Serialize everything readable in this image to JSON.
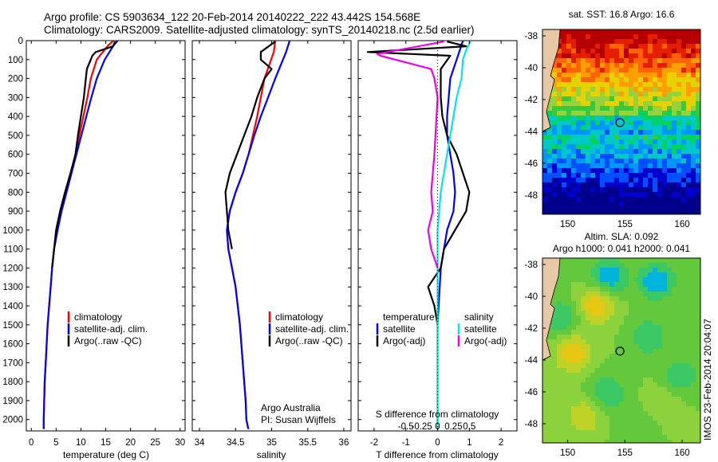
{
  "header": {
    "line1": "Argo profile: CS 5903634_122 20-Feb-2014 20140222_222 43.442S 154.568E",
    "line2": "Climatology: CARS2009. Satellite-adjusted climatology: synTS_20140218.nc (2.5d earlier)"
  },
  "colors": {
    "climatology": "#ff0000",
    "satellite": "#0000ff",
    "argo": "#000000",
    "salinity_satellite": "#00e5ee",
    "salinity_argo": "#ee00ee"
  },
  "chart_data": [
    {
      "type": "line",
      "xlabel": "temperature (deg C)",
      "xlim": [
        -1,
        31
      ],
      "xticks": [
        0,
        5,
        10,
        15,
        20,
        25,
        30
      ],
      "ylim": [
        2060,
        0
      ],
      "yticks": [
        0,
        100,
        200,
        300,
        400,
        500,
        600,
        700,
        800,
        900,
        1000,
        1100,
        1200,
        1300,
        1400,
        1500,
        1600,
        1700,
        1800,
        1900,
        2000
      ],
      "legend": [
        "climatology",
        "satellite-adj. clim.",
        "Argo(..raw -QC)"
      ],
      "series": [
        {
          "name": "climatology",
          "color": "#ff0000",
          "x": [
            16.6,
            15.5,
            13.2,
            12.0,
            11.3,
            10.5,
            9.7,
            8.9,
            8.0,
            7.0,
            6.0,
            5.2,
            4.6,
            4.2,
            3.9,
            3.6,
            3.3,
            3.1,
            2.9,
            2.7,
            2.6,
            2.5,
            2.5
          ],
          "y": [
            0,
            25,
            100,
            200,
            300,
            400,
            500,
            600,
            700,
            800,
            900,
            1000,
            1100,
            1200,
            1300,
            1400,
            1500,
            1600,
            1700,
            1800,
            1900,
            2000,
            2050
          ]
        },
        {
          "name": "satellite-adj. clim.",
          "color": "#0000ff",
          "x": [
            17.4,
            16.6,
            14.8,
            13.2,
            12.1,
            11.1,
            10.1,
            9.1,
            8.1,
            7.1,
            6.1,
            5.3,
            4.6,
            4.2,
            3.9,
            3.6,
            3.3,
            3.1,
            2.9,
            2.7,
            2.6,
            2.5,
            2.5
          ],
          "y": [
            0,
            25,
            100,
            200,
            300,
            400,
            500,
            600,
            700,
            800,
            900,
            1000,
            1100,
            1200,
            1300,
            1400,
            1500,
            1600,
            1700,
            1800,
            1900,
            2000,
            2050
          ]
        },
        {
          "name": "Argo(..raw -QC)",
          "color": "#000000",
          "x": [
            16.9,
            16.5,
            13.0,
            12.3,
            12.0,
            11.2,
            11.0,
            10.6,
            10.0,
            9.4,
            8.9,
            7.9,
            6.8,
            5.8,
            5.0,
            4.6,
            4.2
          ],
          "y": [
            5,
            30,
            60,
            80,
            100,
            150,
            200,
            300,
            400,
            500,
            600,
            700,
            800,
            900,
            1000,
            1100,
            1200
          ]
        }
      ]
    },
    {
      "type": "line",
      "xlabel": "salinity",
      "xlim": [
        33.9,
        36.1
      ],
      "xticks": [
        34,
        34.5,
        35,
        35.5,
        36
      ],
      "ylim": [
        2060,
        0
      ],
      "legend": [
        "climatology",
        "satellite-adj. clim.",
        "Argo(..raw -QC)"
      ],
      "annotation": [
        "Argo Australia",
        "PI: Susan Wijffels"
      ],
      "series": [
        {
          "name": "climatology",
          "color": "#ff0000",
          "x": [
            35.05,
            35.03,
            34.9,
            34.85,
            34.8,
            34.74,
            34.68,
            34.6,
            34.5,
            34.42,
            34.38,
            34.4,
            34.45,
            34.5,
            34.53,
            34.56,
            34.58,
            34.6,
            34.62,
            34.64,
            34.65,
            34.67,
            34.68
          ],
          "y": [
            0,
            60,
            200,
            300,
            400,
            500,
            600,
            700,
            800,
            900,
            1000,
            1100,
            1200,
            1300,
            1400,
            1500,
            1600,
            1700,
            1800,
            1900,
            2000,
            2040,
            2050
          ]
        },
        {
          "name": "satellite-adj. clim.",
          "color": "#0000ff",
          "x": [
            35.25,
            35.2,
            35.05,
            34.95,
            34.85,
            34.76,
            34.68,
            34.6,
            34.5,
            34.42,
            34.38,
            34.4,
            34.45,
            34.5,
            34.53,
            34.56,
            34.58,
            34.6,
            34.62,
            34.64,
            34.65,
            34.67,
            34.68
          ],
          "y": [
            0,
            60,
            200,
            300,
            400,
            500,
            600,
            700,
            800,
            900,
            1000,
            1100,
            1200,
            1300,
            1400,
            1500,
            1600,
            1700,
            1800,
            1900,
            2000,
            2040,
            2050
          ]
        },
        {
          "name": "Argo(..raw -QC)",
          "color": "#000000",
          "x": [
            35.05,
            34.85,
            34.85,
            35.0,
            34.9,
            34.8,
            34.72,
            34.62,
            34.52,
            34.42,
            34.36,
            34.4,
            34.45
          ],
          "y": [
            5,
            60,
            100,
            150,
            200,
            300,
            400,
            500,
            600,
            700,
            800,
            1000,
            1100
          ]
        }
      ]
    },
    {
      "type": "line",
      "xlabel": "T difference from climatology",
      "xlabel_top": "S difference from climatology",
      "xlim": [
        -2.5,
        2.5
      ],
      "xticks": [
        -2,
        -1,
        0,
        1,
        2
      ],
      "xticks_top_labels": [
        "-0.5",
        "-0.25",
        "0",
        "0.25",
        "0.5"
      ],
      "ylim": [
        2060,
        0
      ],
      "legend_groups": [
        {
          "title": "temperature",
          "items": [
            "satellite",
            "Argo(-adj)"
          ]
        },
        {
          "title": "salinity",
          "items": [
            "satellite",
            "Argo(-adj)"
          ]
        }
      ],
      "series": [
        {
          "name": "temperature satellite",
          "color": "#0000ff",
          "x": [
            0.8,
            0.7,
            0.6,
            0.4,
            0.35,
            0.3,
            0.3,
            0.4,
            0.5,
            0.55,
            0.5,
            0.3,
            0.2,
            0.1,
            0.0,
            0.0,
            0.0
          ],
          "y": [
            0,
            50,
            100,
            200,
            300,
            400,
            500,
            600,
            700,
            800,
            900,
            1000,
            1100,
            1200,
            1500,
            1800,
            2050
          ]
        },
        {
          "name": "temperature Argo(-adj)",
          "color": "#000000",
          "x": [
            0.3,
            0.9,
            -2.2,
            0.4,
            0.1,
            0.1,
            0.15,
            0.3,
            0.6,
            0.8,
            1.0,
            0.9,
            0.2,
            0.1,
            -0.3,
            -0.1,
            0.0
          ],
          "y": [
            5,
            30,
            60,
            80,
            150,
            300,
            400,
            500,
            600,
            700,
            800,
            900,
            1100,
            1200,
            1300,
            1400,
            1500
          ]
        },
        {
          "name": "salinity satellite",
          "color": "#00e5ee",
          "x": [
            1.05,
            0.9,
            0.8,
            0.75,
            0.6,
            0.5,
            0.3,
            0.1,
            0.0,
            0.0,
            0.0
          ],
          "y": [
            0,
            50,
            100,
            200,
            300,
            400,
            600,
            800,
            1000,
            1500,
            2050
          ]
        },
        {
          "name": "salinity Argo(-adj)",
          "color": "#ee00ee",
          "x": [
            0.2,
            -1.9,
            -1.8,
            -0.2,
            -0.1,
            0.0,
            -0.1,
            -0.2,
            -0.15,
            -0.3,
            -0.2,
            0.0
          ],
          "y": [
            5,
            70,
            80,
            150,
            200,
            300,
            600,
            800,
            900,
            1000,
            1100,
            1200
          ]
        }
      ]
    },
    {
      "type": "heatmap",
      "title": "sat. SST: 16.8 Argo: 16.6",
      "xticks": [
        150,
        155,
        160
      ],
      "yticks": [
        -38,
        -40,
        -42,
        -44,
        -46,
        -48
      ],
      "xlim": [
        147.8,
        161.6
      ],
      "ylim": [
        -49.2,
        -37.6
      ],
      "marker": {
        "lon": 154.568,
        "lat": -43.442
      }
    },
    {
      "type": "heatmap",
      "title": "Altim. SLA: 0.092",
      "subtitle": "Argo h1000: 0.041 h2000: 0.041",
      "side_text": "IMOS 23-Feb-2014 20:04:07",
      "xticks": [
        150,
        155,
        160
      ],
      "yticks": [
        -38,
        -40,
        -42,
        -44,
        -46,
        -48
      ],
      "xlim": [
        147.8,
        161.6
      ],
      "ylim": [
        -49.2,
        -37.6
      ],
      "marker": {
        "lon": 154.568,
        "lat": -43.442
      }
    }
  ]
}
